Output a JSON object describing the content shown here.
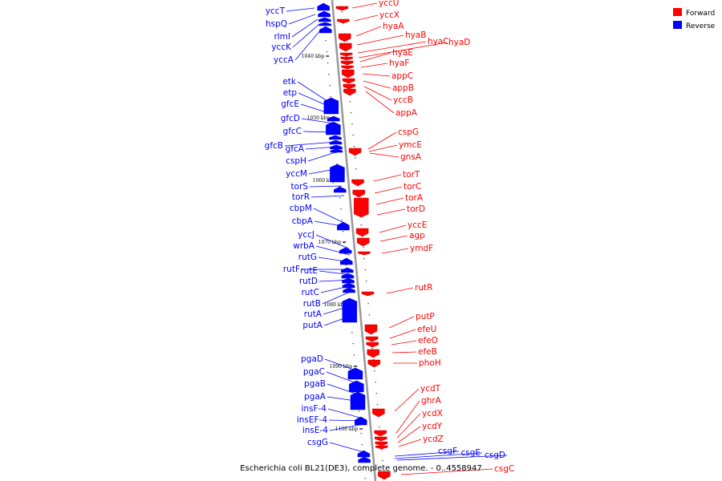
{
  "caption": "Escherichia coli BL21(DE3), complete genome. - 0..4558947",
  "colors": {
    "forward": "#ff0000",
    "reverse": "#0000ff",
    "axis": "#999999"
  },
  "legend": [
    {
      "label": "Forward",
      "color": "#ff0000"
    },
    {
      "label": "Reverse",
      "color": "#0000ff"
    }
  ],
  "ticks": [
    "1040 kbp",
    "1050 kbp",
    "1060 kbp",
    "1070 kbp",
    "1080 kbp",
    "1090 kbp",
    "1100 kbp"
  ],
  "reverse_genes": [
    "yccT",
    "hspQ",
    "rlmI",
    "yccK",
    "yccA",
    "etk",
    "etp",
    "gfcE",
    "gfcD",
    "gfcC",
    "gfcB",
    "gfcA",
    "cspH",
    "yccM",
    "torS",
    "torR",
    "cbpM",
    "cbpA",
    "yccJ",
    "wrbA",
    "rutG",
    "rutF",
    "rutE",
    "rutD",
    "rutC",
    "rutB",
    "rutA",
    "putA",
    "pgaD",
    "pgaC",
    "pgaB",
    "pgaA",
    "insF-4",
    "insEF-4",
    "insE-4",
    "csgG",
    "csgF",
    "csgE",
    "csgD"
  ],
  "forward_genes": [
    "yccU",
    "yccX",
    "hyaA",
    "hyaB",
    "hyaC",
    "hyaD",
    "hyaE",
    "hyaF",
    "appC",
    "appB",
    "yccB",
    "appA",
    "cspG",
    "ymcE",
    "gnsA",
    "torT",
    "torC",
    "torA",
    "torD",
    "yccE",
    "agp",
    "ymdF",
    "rutR",
    "putP",
    "efeU",
    "efeO",
    "efeB",
    "phoH",
    "ycdT",
    "ghrA",
    "ycdX",
    "ycdY",
    "ycdZ",
    "csgC"
  ]
}
